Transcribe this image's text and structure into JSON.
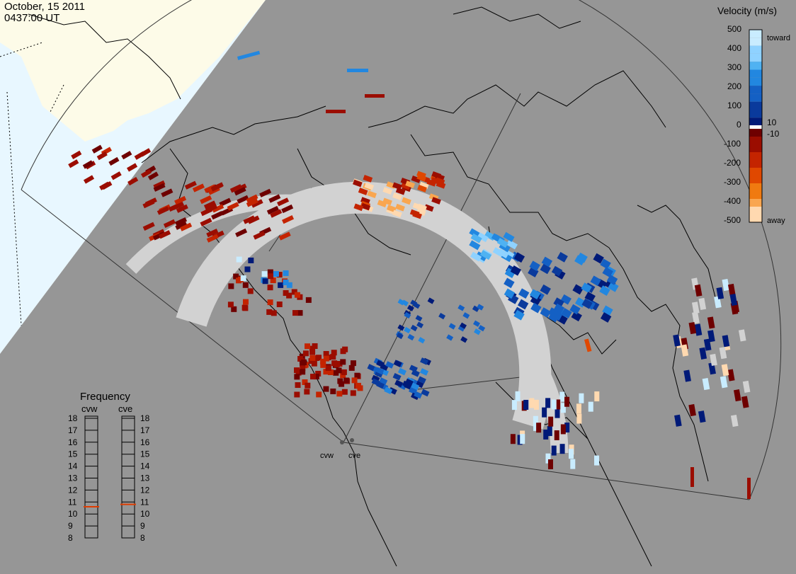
{
  "header": {
    "date": "October, 15 2011",
    "time": "0437:00 UT"
  },
  "colorbar": {
    "title": "Velocity (m/s)",
    "ticks": [
      "500",
      "400",
      "300",
      "200",
      "100",
      "10",
      "0",
      "-10",
      "-100",
      "-200",
      "-300",
      "-400",
      "-500"
    ],
    "toward_label": "toward",
    "away_label": "away",
    "positive_colors": [
      "#c9ecff",
      "#8fd2ff",
      "#4fb2f2",
      "#2287e0",
      "#1460c4",
      "#0a3a9c",
      "#001a78"
    ],
    "negative_colors": [
      "#6e0000",
      "#9b0d00",
      "#c42400",
      "#e04800",
      "#f07a10",
      "#f9a650",
      "#ffd9b0"
    ]
  },
  "frequency": {
    "title": "Frequency",
    "left_label": "cvw",
    "right_label": "cve",
    "scale": [
      "18",
      "17",
      "16",
      "15",
      "14",
      "13",
      "12",
      "11",
      "10",
      "9",
      "8"
    ],
    "cvw_mhz": 10.6,
    "cve_mhz": 10.8,
    "marker_color": "#e03c00"
  },
  "radars": {
    "west": "cvw",
    "east": "cve"
  },
  "map": {
    "background": "#969696",
    "land_fill": "#fdfbe8",
    "water_fill": "#e8f7ff",
    "ground_scatter": "#d2d2d2"
  }
}
